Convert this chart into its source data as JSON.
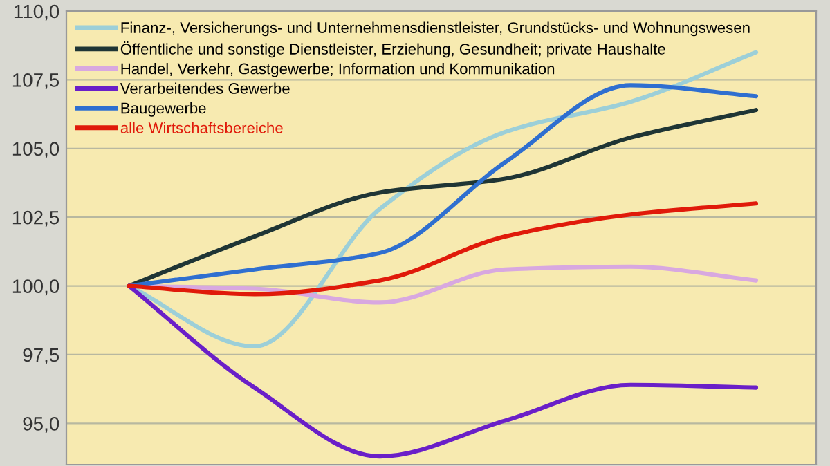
{
  "chart_data": {
    "type": "line",
    "categories": [
      null,
      null,
      null,
      null,
      null,
      null
    ],
    "series": [
      {
        "name": "Finanz-, Versicherungs- und Unternehmensdienstleister, Grundstücks- und Wohnungswesen",
        "color": "#9ccfd8",
        "values": [
          100,
          97.8,
          102.8,
          105.6,
          106.7,
          108.5
        ]
      },
      {
        "name": "Öffentliche und sonstige Dienstleister, Erziehung, Gesundheit; private Haushalte",
        "color": "#1f3535",
        "values": [
          100,
          101.8,
          103.4,
          103.9,
          105.4,
          106.4
        ]
      },
      {
        "name": "Handel, Verkehr, Gastgewerbe; Information und Kommunikation",
        "color": "#d8a8e0",
        "values": [
          100,
          99.9,
          99.4,
          100.6,
          100.7,
          100.2
        ]
      },
      {
        "name": "Verarbeitendes Gewerbe",
        "color": "#6a1fc8",
        "values": [
          100,
          96.3,
          93.8,
          95.1,
          96.4,
          96.3
        ]
      },
      {
        "name": "Baugewerbe",
        "color": "#2f6fd0",
        "values": [
          100,
          100.6,
          101.2,
          104.5,
          107.3,
          106.9
        ]
      },
      {
        "name": "alle Wirtschaftsbereiche",
        "color": "#e01a0a",
        "values": [
          100,
          99.7,
          100.2,
          101.8,
          102.6,
          103.0
        ]
      }
    ],
    "ylim": [
      93.5,
      110
    ],
    "yticks": [
      {
        "value": 95,
        "label": "95,0"
      },
      {
        "value": 97.5,
        "label": "97,5"
      },
      {
        "value": 100,
        "label": "100,0"
      },
      {
        "value": 102.5,
        "label": "102,5"
      },
      {
        "value": 105,
        "label": "105,0"
      },
      {
        "value": 107.5,
        "label": "107,5"
      },
      {
        "value": 110,
        "label": "110,0"
      }
    ],
    "grid": "y",
    "legend": "top left",
    "tick_labels": "y",
    "marker": "none",
    "line_style": "solid"
  }
}
